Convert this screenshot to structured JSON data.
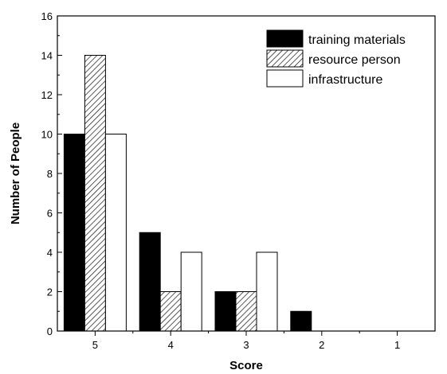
{
  "chart_data": {
    "type": "bar",
    "title": "",
    "xlabel": "Score",
    "ylabel": "Number of People",
    "categories": [
      "5",
      "4",
      "3",
      "2",
      "1"
    ],
    "ylim": [
      0,
      16
    ],
    "yticks": [
      0,
      2,
      4,
      6,
      8,
      10,
      12,
      14,
      16
    ],
    "series": [
      {
        "name": "training materials",
        "values": [
          10,
          5,
          2,
          1,
          0
        ],
        "fill": "solid-black"
      },
      {
        "name": "resource person",
        "values": [
          14,
          2,
          2,
          0,
          0
        ],
        "fill": "diagonal-hatch"
      },
      {
        "name": "infrastructure",
        "values": [
          10,
          4,
          4,
          0,
          0
        ],
        "fill": "white"
      }
    ],
    "legend_position": "top-right",
    "grid": false
  }
}
